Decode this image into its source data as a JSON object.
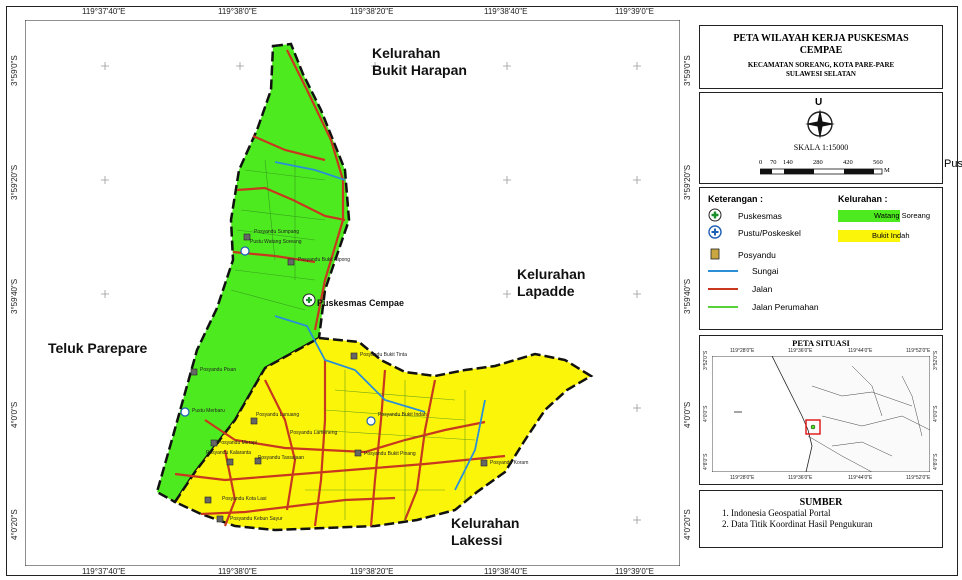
{
  "map": {
    "coords_top": [
      "119°37'40\"E",
      "119°38'0\"E",
      "119°38'20\"E",
      "119°38'40\"E",
      "119°39'0\"E"
    ],
    "coords_bottom": [
      "119°37'40\"E",
      "119°38'0\"E",
      "119°38'20\"E",
      "119°38'40\"E",
      "119°39'0\"E"
    ],
    "coords_left": [
      "3°59'0\"S",
      "3°59'20\"S",
      "3°59'40\"S",
      "4°0'0\"S",
      "4°0'20\"S"
    ],
    "coords_right": [
      "3°59'0\"S",
      "3°59'20\"S",
      "3°59'40\"S",
      "4°0'0\"S",
      "4°0'20\"S"
    ],
    "regions": {
      "bukit_harapan": [
        "Kelurahan",
        "Bukit Harapan"
      ],
      "lapadde": [
        "Kelurahan",
        "Lapadde"
      ],
      "teluk": "Teluk Parepare",
      "lakessi": [
        "Kelurahan",
        "Lakessi"
      ]
    },
    "puskesmas_label": "Puskesmas Cempae",
    "small_labels": {
      "p1": "Posyandu Sumpang",
      "p2": "Pustu Watang Soreang",
      "p3": "Posyandu Bukit Nipong",
      "p4": "Posyandu Bukit Tinta",
      "p5": "Posyandu Pisan",
      "p6": "Pustu Merbaru",
      "p7": "Posyandu Lanuang",
      "p8": "Posyandu Bukit Indah",
      "p9": "Posyandu Merapi",
      "p10": "Posyandu Kalaranta",
      "p11": "Posyandu Lameneng",
      "p12": "Posyandu Tassajaan",
      "p13": "Posyandu Bukit Pinang",
      "p14": "Posyandu Koram",
      "p15": "Posyandu Kota Lasi",
      "p16": "Posyandu Kebun Sayur"
    },
    "colors": {
      "watang_soreang": "#4dea1f",
      "bukit_indah": "#fbf50a",
      "jalan": "#c8381f",
      "sungai": "#2a8fd6",
      "jalan_perumahan": "#58d23a"
    }
  },
  "title": {
    "line1": "PETA WILAYAH KERJA PUSKESMAS",
    "line2": "CEMPAE",
    "sub1": "KECAMATAN SOREANG, KOTA PARE-PARE",
    "sub2": "SULAWESI SELATAN"
  },
  "scale": {
    "north": "U",
    "text": "SKALA 1:15000",
    "ticks": [
      "0",
      "70",
      "140",
      "280",
      "420",
      "560"
    ],
    "unit": "M"
  },
  "legend": {
    "keterangan": "Keterangan :",
    "kelurahan": "Kelurahan :",
    "items": [
      "Puskesmas",
      "Pustu/Poskeskel",
      "Posyandu",
      "Sungai",
      "Jalan",
      "Jalan Perumahan"
    ],
    "kel_items": [
      "Watang Soreang",
      "Bukit Indah"
    ]
  },
  "situasi": {
    "title": "PETA SITUASI",
    "top_coords": [
      "119°28'0\"E",
      "119°36'0\"E",
      "119°44'0\"E",
      "119°52'0\"E"
    ],
    "bottom_coords": [
      "119°28'0\"E",
      "119°36'0\"E",
      "119°44'0\"E",
      "119°52'0\"E"
    ],
    "left_coords": [
      "3°52'0\"S",
      "4°0'0\"S",
      "4°8'0\"S"
    ],
    "right_coords": [
      "3°52'0\"S",
      "4°0'0\"S",
      "4°8'0\"S"
    ]
  },
  "sumber": {
    "title": "SUMBER",
    "items": [
      "1. Indonesia Geospatial Portal",
      "2. Data Titik Koordinat Hasil Pengukuran"
    ]
  },
  "overflow_text": "Pus"
}
